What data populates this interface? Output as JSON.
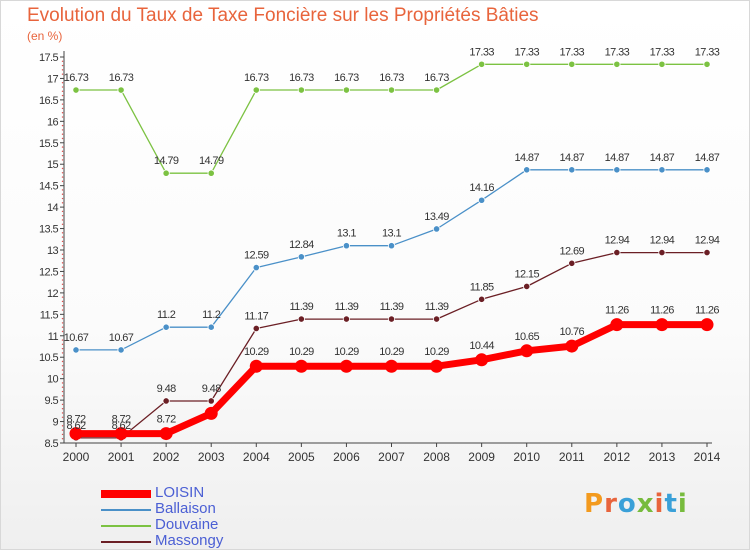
{
  "title": "Evolution du Taux de Taxe Foncière sur les Propriétés Bâties",
  "subtitle": "(en %)",
  "logo_text": "Proxiti",
  "logo_colors": [
    "#f39a1e",
    "#e8643c",
    "#3aa0d8",
    "#77bb3d",
    "#e8643c",
    "#3aa0d8",
    "#77bb3d"
  ],
  "chart_data": {
    "type": "line",
    "title": "Evolution du Taux de Taxe Foncière sur les Propriétés Bâties",
    "ylabel": "(en %)",
    "xlabel": "",
    "ylim": [
      8.5,
      17.5
    ],
    "ytick_step": 0.5,
    "grid": false,
    "legend_position": "bottom-left",
    "x": [
      "2000",
      "2001",
      "2002",
      "2003",
      "2004",
      "2005",
      "2006",
      "2007",
      "2008",
      "2009",
      "2010",
      "2011",
      "2012",
      "2013",
      "2014"
    ],
    "series": [
      {
        "name": "LOISIN",
        "color": "#ff0000",
        "values": [
          8.72,
          8.72,
          8.72,
          9.19,
          10.29,
          10.29,
          10.29,
          10.29,
          10.29,
          10.44,
          10.65,
          10.76,
          11.26,
          11.26,
          11.26
        ],
        "labels": [
          "8.72",
          "8.72",
          "8.72",
          "",
          "10.29",
          "10.29",
          "10.29",
          "10.29",
          "10.29",
          "10.44",
          "10.65",
          "10.76",
          "11.26",
          "11.26",
          "11.26"
        ]
      },
      {
        "name": "Ballaison",
        "color": "#4a90c8",
        "values": [
          10.67,
          10.67,
          11.2,
          11.2,
          12.59,
          12.84,
          13.1,
          13.1,
          13.49,
          14.16,
          14.87,
          14.87,
          14.87,
          14.87,
          14.87
        ],
        "labels": [
          "10.67",
          "10.67",
          "11.2",
          "11.2",
          "12.59",
          "12.84",
          "13.1",
          "13.1",
          "13.49",
          "14.16",
          "14.87",
          "14.87",
          "14.87",
          "14.87",
          "14.87"
        ]
      },
      {
        "name": "Douvaine",
        "color": "#7cc242",
        "values": [
          16.73,
          16.73,
          14.79,
          14.79,
          16.73,
          16.73,
          16.73,
          16.73,
          16.73,
          17.33,
          17.33,
          17.33,
          17.33,
          17.33,
          17.33
        ],
        "labels": [
          "16.73",
          "16.73",
          "14.79",
          "14.79",
          "16.73",
          "16.73",
          "16.73",
          "16.73",
          "16.73",
          "17.33",
          "17.33",
          "17.33",
          "17.33",
          "17.33",
          "17.33"
        ]
      },
      {
        "name": "Massongy",
        "color": "#6b1f25",
        "values": [
          8.62,
          8.62,
          9.48,
          9.48,
          11.17,
          11.39,
          11.39,
          11.39,
          11.39,
          11.85,
          12.15,
          12.69,
          12.94,
          12.94,
          12.94
        ],
        "labels": [
          "8.62",
          "8.62",
          "9.48",
          "9.48",
          "11.17",
          "11.39",
          "11.39",
          "11.39",
          "11.39",
          "11.85",
          "12.15",
          "12.69",
          "12.94",
          "12.94",
          "12.94"
        ]
      }
    ]
  }
}
